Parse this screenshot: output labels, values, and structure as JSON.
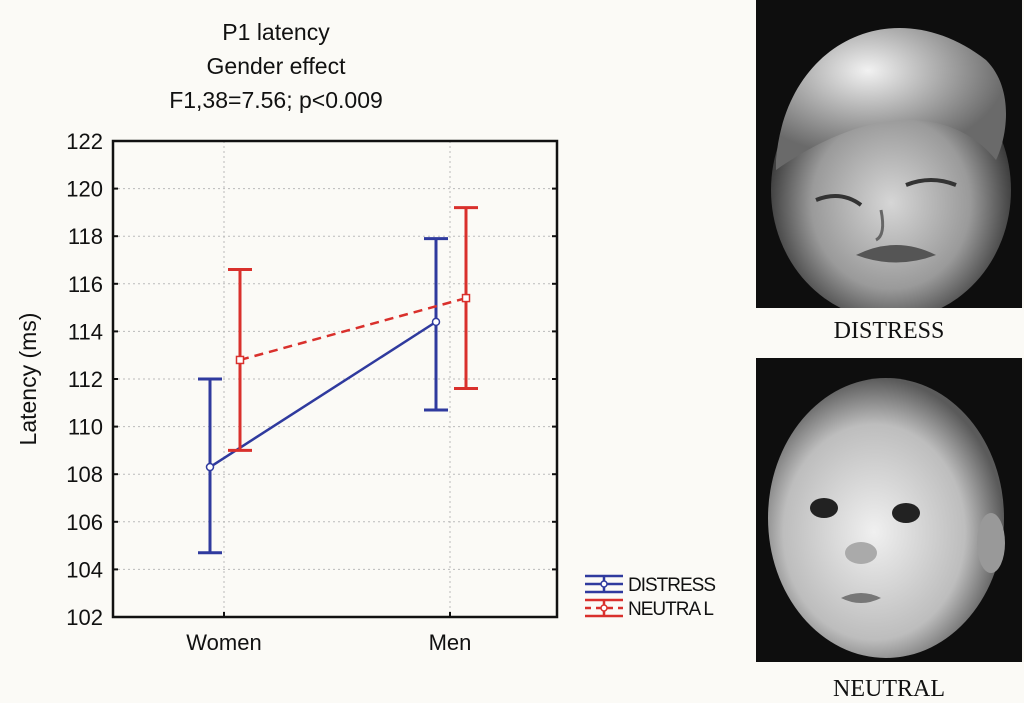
{
  "chart_data": {
    "type": "line",
    "title": [
      "P1 latency",
      "Gender effect",
      "F1,38=7.56; p<0.009"
    ],
    "xlabel": "",
    "ylabel": "Latency (ms)",
    "categories": [
      "Women",
      "Men"
    ],
    "ylim": [
      102,
      122
    ],
    "yticks": [
      102,
      104,
      106,
      108,
      110,
      112,
      114,
      116,
      118,
      120,
      122
    ],
    "grid": true,
    "legend_position": "bottom-right outside",
    "series": [
      {
        "name": "DISTRESS",
        "color": "#2f3a9e",
        "style": "solid",
        "values": [
          108.3,
          114.4
        ],
        "upper": [
          112.0,
          117.9
        ],
        "lower": [
          104.7,
          110.7
        ]
      },
      {
        "name": "NEUTRAL",
        "color": "#d9302c",
        "style": "dashed",
        "values": [
          112.8,
          115.4
        ],
        "upper": [
          116.6,
          119.2
        ],
        "lower": [
          109.0,
          111.6
        ]
      }
    ],
    "legend_labels": [
      "DISTRESS",
      "NEUTRA L"
    ]
  },
  "photos": [
    {
      "subject": "crying toddler face",
      "caption": "DISTRESS"
    },
    {
      "subject": "neutral baby face",
      "caption": "NEUTRAL"
    }
  ]
}
